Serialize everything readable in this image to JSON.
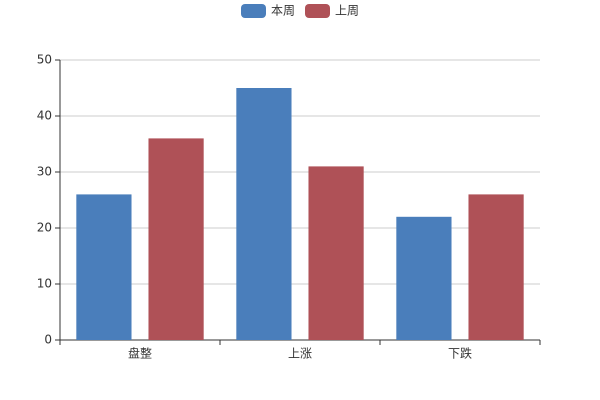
{
  "chart_data": {
    "type": "bar",
    "categories": [
      "盘整",
      "上涨",
      "下跌"
    ],
    "series": [
      {
        "name": "本周",
        "color": "#4a7ebb",
        "values": [
          26,
          45,
          22
        ]
      },
      {
        "name": "上周",
        "color": "#af5157",
        "values": [
          36,
          31,
          26
        ]
      }
    ],
    "ylim": [
      0,
      50
    ],
    "yticks": [
      0,
      10,
      20,
      30,
      40,
      50
    ],
    "grid": true,
    "legend": "top"
  }
}
